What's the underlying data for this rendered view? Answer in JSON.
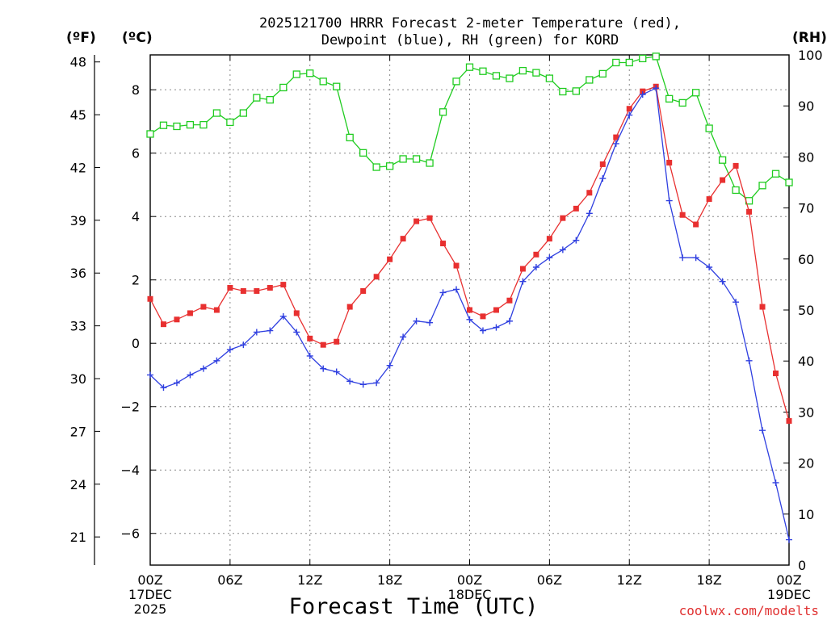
{
  "chart_data": {
    "type": "line",
    "title_line1": "2025121700 HRRR Forecast 2-meter Temperature (red),",
    "title_line2": "Dewpoint (blue), RH (green) for KORD",
    "xlabel": "Forecast Time (UTC)",
    "credit": "coolwx.com/modelts",
    "left_outer_unit": "(ºF)",
    "left_inner_unit": "(ºC)",
    "right_unit": "(RH)",
    "x_range_hours": [
      0,
      48
    ],
    "ylim_c": [
      -7,
      9.1
    ],
    "ylim_rh": [
      0,
      100
    ],
    "ylim_f": [
      19.4,
      48.4
    ],
    "f_ticks": [
      48,
      45,
      42,
      39,
      36,
      33,
      30,
      27,
      24,
      21
    ],
    "c_ticks": [
      8,
      6,
      4,
      2,
      0,
      -2,
      -4,
      -6
    ],
    "rh_ticks": [
      100,
      90,
      80,
      70,
      60,
      50,
      40,
      30,
      20,
      10,
      0
    ],
    "x_ticks": [
      {
        "hour": 0,
        "lines": [
          "00Z",
          "17DEC",
          "2025"
        ]
      },
      {
        "hour": 6,
        "lines": [
          "06Z"
        ]
      },
      {
        "hour": 12,
        "lines": [
          "12Z"
        ]
      },
      {
        "hour": 18,
        "lines": [
          "18Z"
        ]
      },
      {
        "hour": 24,
        "lines": [
          "00Z",
          "18DEC"
        ]
      },
      {
        "hour": 30,
        "lines": [
          "06Z"
        ]
      },
      {
        "hour": 36,
        "lines": [
          "12Z"
        ]
      },
      {
        "hour": 42,
        "lines": [
          "18Z"
        ]
      },
      {
        "hour": 48,
        "lines": [
          "00Z",
          "19DEC"
        ]
      }
    ],
    "series": [
      {
        "name": "2-meter Temperature",
        "unit": "C",
        "color": "#e83030",
        "marker": "filled-square",
        "values": [
          1.4,
          0.6,
          0.75,
          0.95,
          1.15,
          1.05,
          1.75,
          1.65,
          1.65,
          1.75,
          1.85,
          0.95,
          0.15,
          -0.05,
          0.05,
          1.15,
          1.65,
          2.1,
          2.65,
          3.3,
          3.85,
          3.95,
          3.15,
          2.45,
          1.05,
          0.85,
          1.05,
          1.35,
          2.35,
          2.8,
          3.3,
          3.95,
          4.25,
          4.75,
          5.65,
          6.5,
          7.4,
          7.95,
          8.1,
          5.7,
          4.05,
          3.75,
          4.55,
          5.15,
          5.6,
          4.15,
          1.15,
          -0.95,
          -2.45
        ]
      },
      {
        "name": "Dewpoint",
        "unit": "C",
        "color": "#3040e0",
        "marker": "plus",
        "values": [
          -1.0,
          -1.4,
          -1.25,
          -1.0,
          -0.8,
          -0.55,
          -0.2,
          -0.05,
          0.35,
          0.4,
          0.85,
          0.35,
          -0.4,
          -0.8,
          -0.9,
          -1.2,
          -1.3,
          -1.25,
          -0.7,
          0.2,
          0.7,
          0.65,
          1.6,
          1.7,
          0.75,
          0.4,
          0.5,
          0.7,
          1.95,
          2.4,
          2.7,
          2.95,
          3.25,
          4.1,
          5.2,
          6.3,
          7.2,
          7.85,
          8.05,
          4.5,
          2.7,
          2.7,
          2.4,
          1.95,
          1.3,
          -0.55,
          -2.75,
          -4.4,
          -6.2
        ]
      },
      {
        "name": "RH",
        "unit": "%",
        "color": "#20cc20",
        "marker": "open-square",
        "values": [
          84.5,
          86.2,
          86,
          86.3,
          86.3,
          88.6,
          86.8,
          88.6,
          91.6,
          91.2,
          93.6,
          96.2,
          96.4,
          94.8,
          93.8,
          83.8,
          80.8,
          78,
          78.2,
          79.6,
          79.6,
          78.8,
          88.8,
          94.8,
          97.6,
          96.8,
          95.9,
          95.4,
          96.9,
          96.5,
          95.4,
          92.8,
          92.9,
          95.1,
          96.3,
          98.5,
          98.5,
          99.3,
          99.7,
          91.4,
          90.6,
          92.6,
          85.6,
          79.4,
          73.5,
          71.4,
          74.4,
          76.7,
          75
        ]
      }
    ]
  }
}
